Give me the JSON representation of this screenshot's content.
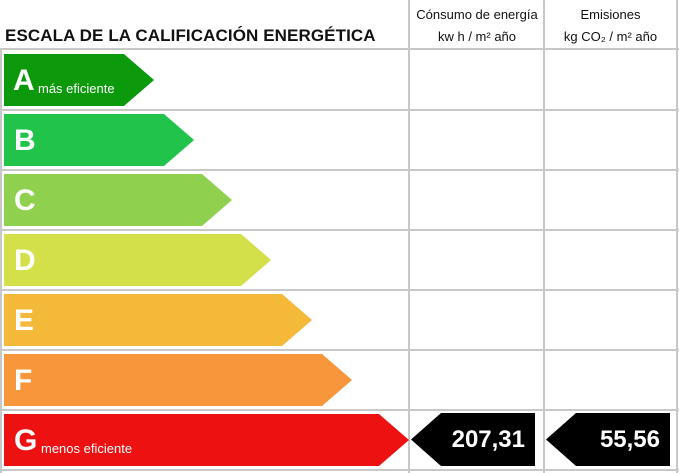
{
  "title": "ESCALA DE LA CALIFICACIÓN ENERGÉTICA",
  "columns": {
    "consumo": {
      "line1": "Cónsumo de energía",
      "line2": "kw h / m² año"
    },
    "emisiones": {
      "line1": "Emisiones",
      "line2": "kg CO₂ / m² año"
    }
  },
  "bands": [
    {
      "letter": "A",
      "sub": "más eficiente",
      "color": "#0c9a0c"
    },
    {
      "letter": "B",
      "sub": "",
      "color": "#22c34a"
    },
    {
      "letter": "C",
      "sub": "",
      "color": "#8fd14f"
    },
    {
      "letter": "D",
      "sub": "",
      "color": "#d3e04a"
    },
    {
      "letter": "E",
      "sub": "",
      "color": "#f5b93a"
    },
    {
      "letter": "F",
      "sub": "",
      "color": "#f7963a"
    },
    {
      "letter": "G",
      "sub": "menos eficiente",
      "color": "#ee1111"
    }
  ],
  "rating": {
    "letter": "G",
    "consumo": "207,31",
    "emisiones": "55,56",
    "indicator_color": "#000000"
  }
}
